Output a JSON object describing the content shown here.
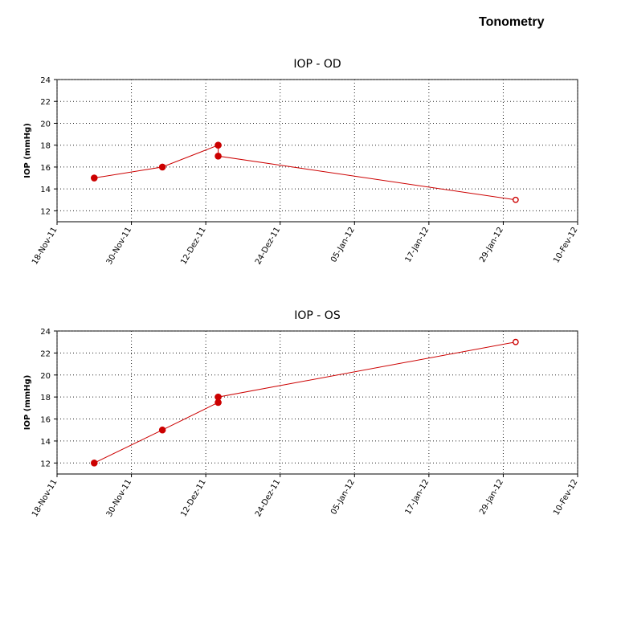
{
  "page": {
    "title": "Tonometry"
  },
  "chart_data": [
    {
      "type": "line",
      "title": "IOP - OD",
      "xlabel": "",
      "ylabel": "IOP (mmHg)",
      "x_type": "date",
      "xlim": [
        "2011-11-18",
        "2012-02-10"
      ],
      "x_ticks": [
        "2011-11-18",
        "2011-11-30",
        "2011-12-12",
        "2011-12-24",
        "2012-01-05",
        "2012-01-17",
        "2012-01-29",
        "2012-02-10"
      ],
      "x_tick_labels": [
        "18-Nov-11",
        "30-Nov-11",
        "12-Dez-11",
        "24-Dez-11",
        "05-Jan-12",
        "17-Jan-12",
        "29-Jan-12",
        "10-Fev-12"
      ],
      "ylim": [
        11,
        24
      ],
      "y_ticks": [
        12,
        14,
        16,
        18,
        20,
        22,
        24
      ],
      "grid": true,
      "series": [
        {
          "color": "#cc0000",
          "points": [
            {
              "x": "2011-11-24",
              "y": 15,
              "marker": "filled"
            },
            {
              "x": "2011-12-05",
              "y": 16,
              "marker": "filled"
            },
            {
              "x": "2011-12-14",
              "y": 18,
              "marker": "filled"
            },
            {
              "x": "2011-12-14",
              "y": 17,
              "marker": "filled"
            },
            {
              "x": "2012-01-31",
              "y": 13,
              "marker": "open"
            }
          ]
        }
      ]
    },
    {
      "type": "line",
      "title": "IOP - OS",
      "xlabel": "",
      "ylabel": "IOP (mmHg)",
      "x_type": "date",
      "xlim": [
        "2011-11-18",
        "2012-02-10"
      ],
      "x_ticks": [
        "2011-11-18",
        "2011-11-30",
        "2011-12-12",
        "2011-12-24",
        "2012-01-05",
        "2012-01-17",
        "2012-01-29",
        "2012-02-10"
      ],
      "x_tick_labels": [
        "18-Nov-11",
        "30-Nov-11",
        "12-Dez-11",
        "24-Dez-11",
        "05-Jan-12",
        "17-Jan-12",
        "29-Jan-12",
        "10-Fev-12"
      ],
      "ylim": [
        11,
        24
      ],
      "y_ticks": [
        12,
        14,
        16,
        18,
        20,
        22,
        24
      ],
      "grid": true,
      "series": [
        {
          "color": "#cc0000",
          "points": [
            {
              "x": "2011-11-24",
              "y": 12,
              "marker": "filled"
            },
            {
              "x": "2011-12-05",
              "y": 15,
              "marker": "filled"
            },
            {
              "x": "2011-12-14",
              "y": 17.5,
              "marker": "filled"
            },
            {
              "x": "2011-12-14",
              "y": 18,
              "marker": "filled"
            },
            {
              "x": "2012-01-31",
              "y": 23,
              "marker": "open"
            }
          ]
        }
      ]
    }
  ]
}
